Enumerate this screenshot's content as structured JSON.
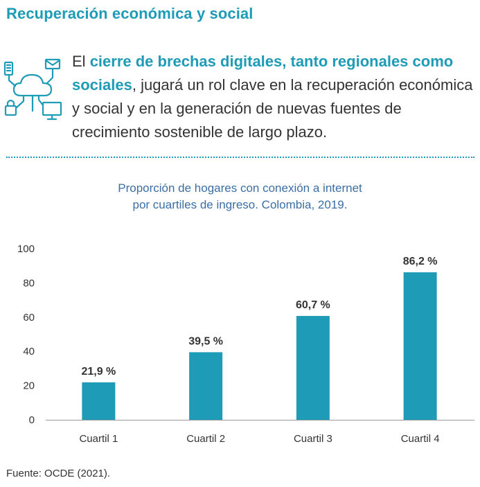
{
  "header": {
    "title": "Recuperación económica y social"
  },
  "intro": {
    "icon": "cloud-network-icon",
    "parts": [
      {
        "text": "El ",
        "highlight": false
      },
      {
        "text": "cierre de brechas digitales, tanto regionales como sociales",
        "highlight": true
      },
      {
        "text": ", jugará un rol clave en la recuperación económica y social y en la generación de nuevas fuentes de crecimiento sostenible de largo plazo.",
        "highlight": false
      }
    ]
  },
  "colors": {
    "accent": "#1e9bb6",
    "bar": "#1e9bb6",
    "chart_title": "#3a6ea5",
    "text": "#333333"
  },
  "chart_data": {
    "type": "bar",
    "title_lines": [
      "Proporción de hogares con conexión a internet",
      "por cuartiles de ingreso. Colombia, 2019."
    ],
    "categories": [
      "Cuartil 1",
      "Cuartil 2",
      "Cuartil 3",
      "Cuartil 4"
    ],
    "values": [
      21.9,
      39.5,
      60.7,
      86.2
    ],
    "data_labels": [
      "21,9 %",
      "39,5 %",
      "60,7 %",
      "86,2 %"
    ],
    "ylim": [
      0,
      100
    ],
    "yticks": [
      0,
      20,
      40,
      60,
      80,
      100
    ],
    "xlabel": "",
    "ylabel": "",
    "grid": false,
    "legend": "none"
  },
  "footer": {
    "source": "Fuente: OCDE (2021)."
  }
}
